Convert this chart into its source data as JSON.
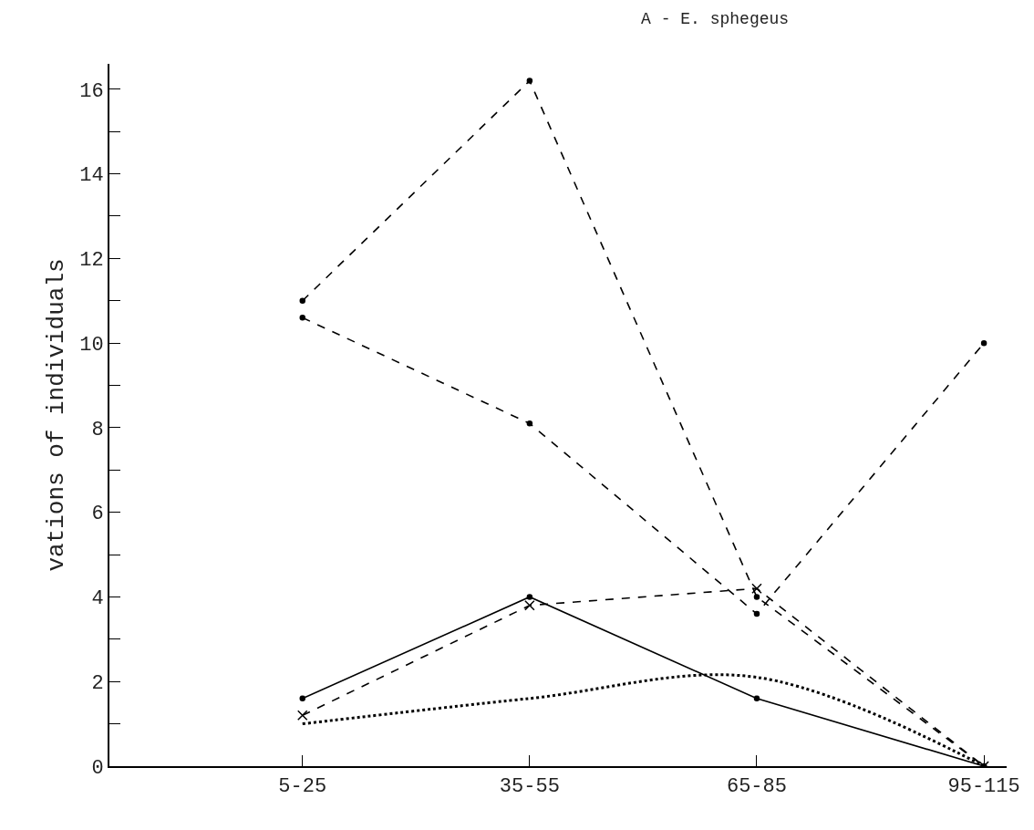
{
  "chart_data": {
    "type": "line",
    "title": "A - E. sphegeus",
    "ylabel": "vations of individuals",
    "categories": [
      "5-25",
      "35-55",
      "65-85",
      "95-115"
    ],
    "series": [
      {
        "color": "#000000",
        "values": [
          11.0,
          16.2,
          4.0,
          0
        ],
        "line_style": "dashed",
        "marker": "circle"
      },
      {
        "color": "#000000",
        "values": [
          10.6,
          8.1,
          3.6,
          10.0
        ],
        "line_style": "dashed",
        "marker": "circle"
      },
      {
        "color": "#000000",
        "values": [
          1.6,
          4.0,
          1.6,
          0
        ],
        "line_style": "solid",
        "marker": "circle"
      },
      {
        "color": "#000000",
        "values": [
          1.2,
          3.8,
          4.2,
          0
        ],
        "line_style": "dashed",
        "marker": "cross"
      },
      {
        "color": "#000000",
        "values": [
          1.0,
          1.6,
          2.1,
          0
        ],
        "line_style": "dotted",
        "marker": "none"
      }
    ],
    "ylim": [
      0,
      16.6
    ],
    "yticks": [
      0,
      {
        "value": 1,
        "label": null
      },
      2,
      {
        "value": 3,
        "label": null
      },
      4,
      {
        "value": 5,
        "label": null
      },
      6,
      {
        "value": 7,
        "label": null
      },
      8,
      {
        "value": 9,
        "label": null
      },
      10,
      {
        "value": 11,
        "label": null
      },
      12,
      {
        "value": 13,
        "label": null
      },
      14,
      {
        "value": 15,
        "label": null
      },
      16
    ]
  }
}
